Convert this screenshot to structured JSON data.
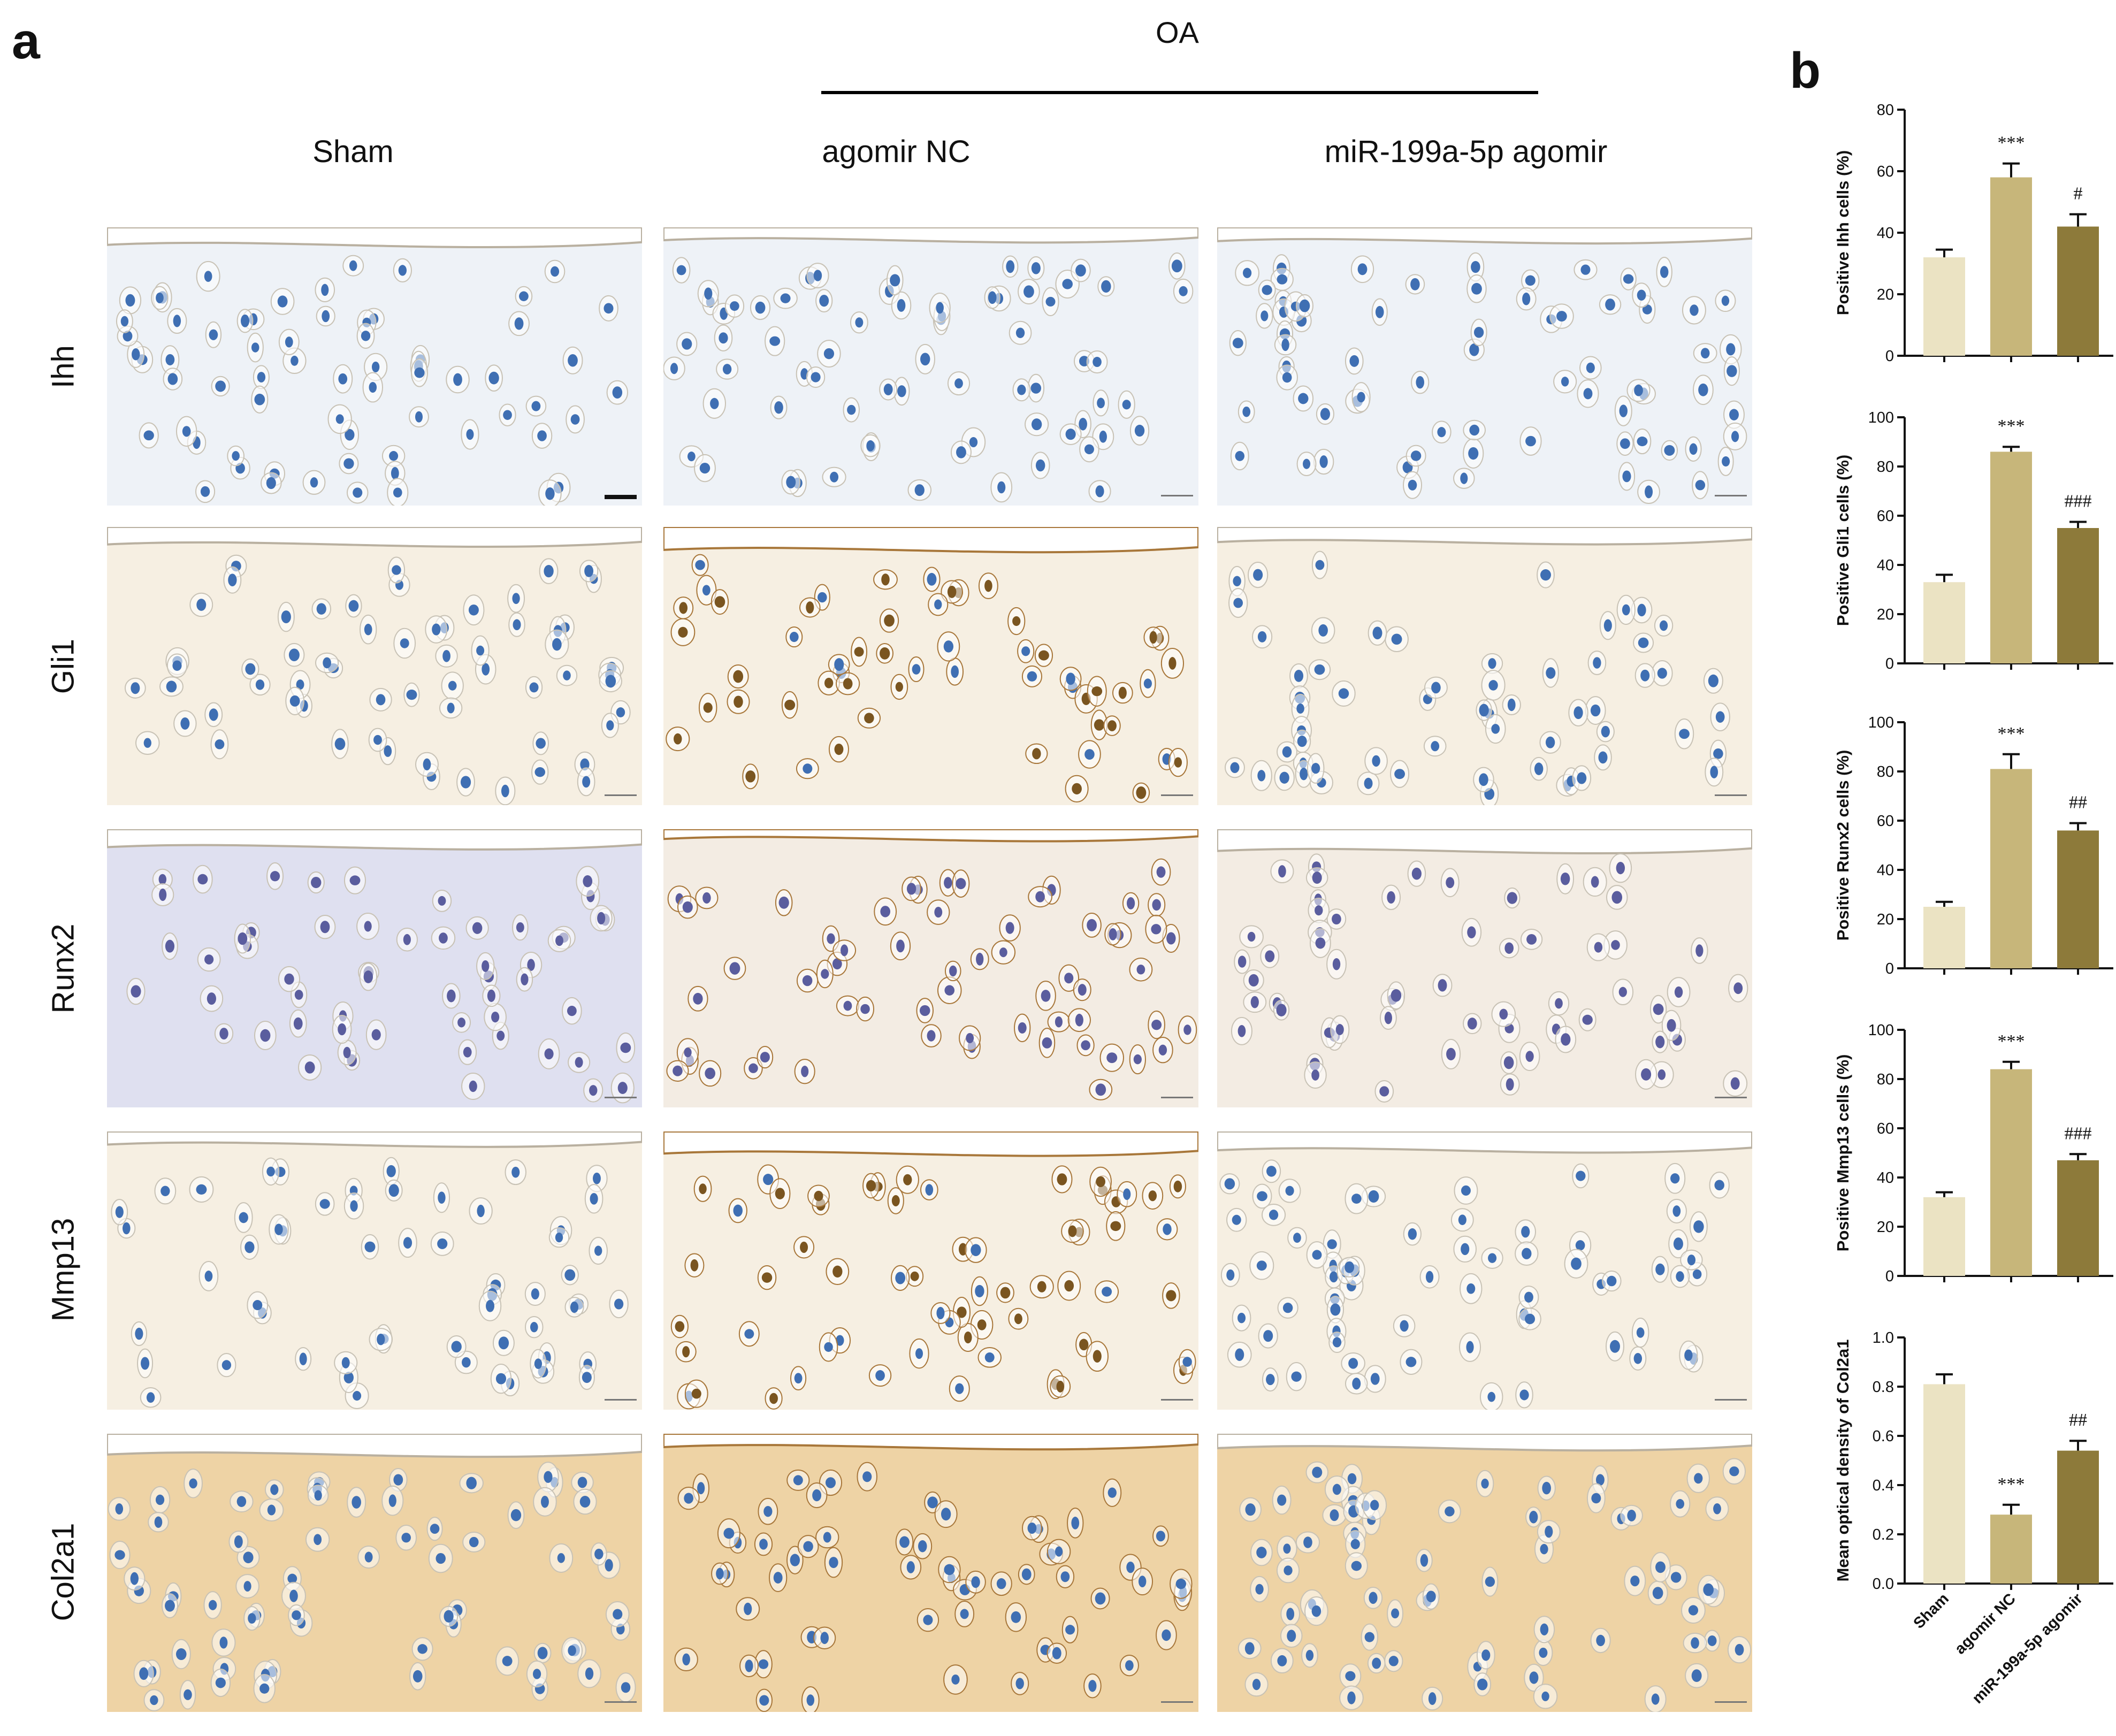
{
  "panel_a": {
    "label": "a",
    "group_label": "OA",
    "columns": [
      "Sham",
      "agomir NC",
      "miR-199a-5p agomir"
    ],
    "rows": [
      "Ihh",
      "Gli1",
      "Runx2",
      "Mmp13",
      "Col2a1"
    ],
    "stain_colors": {
      "background_stain": "#f6efe2",
      "nuclei_blue": "#3f6fb3",
      "dab_brown": "#a8773a",
      "hematoxylin_purple": "#5a5d9e",
      "runx2_sham_bg": "#dfe0f0",
      "col2a1_bg": "#eed3a5"
    }
  },
  "panel_b": {
    "label": "b",
    "categories": [
      "Sham",
      "agomir NC",
      "miR-199a-5p agomir"
    ],
    "bar_colors": [
      "#ebe3c3",
      "#c7b67a",
      "#8d7a3a"
    ]
  },
  "chart_data": [
    {
      "type": "bar",
      "ylabel": "Positive Ihh cells (%)",
      "ylim": [
        0,
        80
      ],
      "yticks": [
        0,
        20,
        40,
        60,
        80
      ],
      "categories": [
        "Sham",
        "agomir NC",
        "miR-199a-5p agomir"
      ],
      "values": [
        32,
        58,
        42
      ],
      "errors": [
        2.5,
        4.5,
        4
      ],
      "annotations": [
        "",
        "***",
        "#"
      ]
    },
    {
      "type": "bar",
      "ylabel": "Positive Gli1  cells (%)",
      "ylim": [
        0,
        100
      ],
      "yticks": [
        0,
        20,
        40,
        60,
        80,
        100
      ],
      "categories": [
        "Sham",
        "agomir NC",
        "miR-199a-5p agomir"
      ],
      "values": [
        33,
        86,
        55
      ],
      "errors": [
        3,
        2,
        2.5
      ],
      "annotations": [
        "",
        "***",
        "###"
      ]
    },
    {
      "type": "bar",
      "ylabel": "Positive Runx2 cells (%)",
      "ylim": [
        0,
        100
      ],
      "yticks": [
        0,
        20,
        40,
        60,
        80,
        100
      ],
      "categories": [
        "Sham",
        "agomir NC",
        "miR-199a-5p agomir"
      ],
      "values": [
        25,
        81,
        56
      ],
      "errors": [
        2,
        6,
        3
      ],
      "annotations": [
        "",
        "***",
        "##"
      ]
    },
    {
      "type": "bar",
      "ylabel": "Positive Mmp13 cells (%)",
      "ylim": [
        0,
        100
      ],
      "yticks": [
        0,
        20,
        40,
        60,
        80,
        100
      ],
      "categories": [
        "Sham",
        "agomir NC",
        "miR-199a-5p agomir"
      ],
      "values": [
        32,
        84,
        47
      ],
      "errors": [
        2,
        3,
        2.5
      ],
      "annotations": [
        "",
        "***",
        "###"
      ]
    },
    {
      "type": "bar",
      "ylabel": "Mean optical density of Col2a1",
      "ylim": [
        0,
        1.0
      ],
      "yticks": [
        0.0,
        0.2,
        0.4,
        0.6,
        0.8,
        1.0
      ],
      "ytick_labels": [
        "0.0",
        "0.2",
        "0.4",
        "0.6",
        "0.8",
        "1.0"
      ],
      "categories": [
        "Sham",
        "agomir NC",
        "miR-199a-5p agomir"
      ],
      "values": [
        0.81,
        0.28,
        0.54
      ],
      "errors": [
        0.04,
        0.04,
        0.04
      ],
      "annotations": [
        "",
        "***",
        "##"
      ]
    }
  ]
}
